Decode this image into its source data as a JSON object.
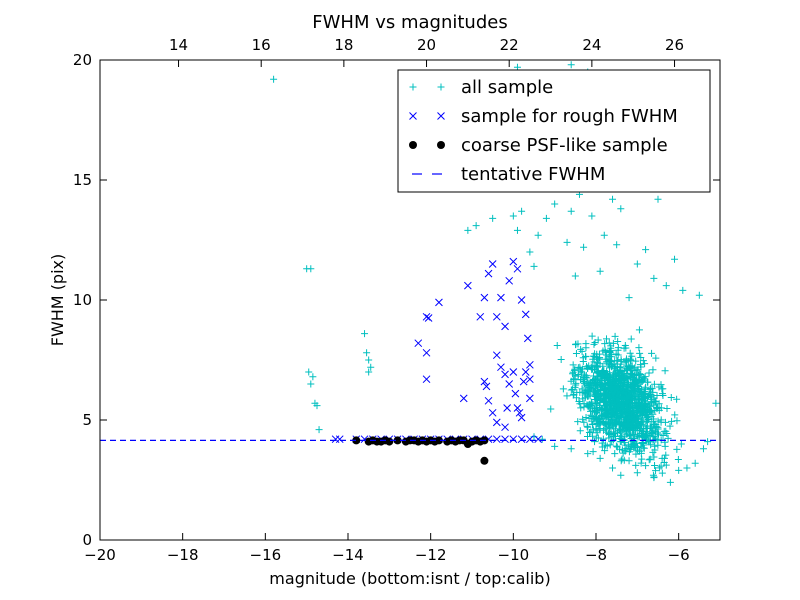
{
  "chart_data": {
    "type": "scatter",
    "title": "FWHM vs magnitudes",
    "xlabel": "magnitude (bottom:isnt / top:calib)",
    "ylabel": "FWHM (pix)",
    "xlim": [
      -20,
      -5
    ],
    "ylim": [
      0,
      20
    ],
    "top_xlim": [
      12.1,
      27.1
    ],
    "x_ticks": [
      -20,
      -18,
      -16,
      -14,
      -12,
      -10,
      -8,
      -6
    ],
    "x_tick_labels": [
      "−20",
      "−18",
      "−16",
      "−14",
      "−12",
      "−10",
      "−8",
      "−6"
    ],
    "y_ticks": [
      0,
      5,
      10,
      15,
      20
    ],
    "y_tick_labels": [
      "0",
      "5",
      "10",
      "15",
      "20"
    ],
    "top_ticks": [
      14,
      16,
      18,
      20,
      22,
      24,
      26
    ],
    "top_tick_labels": [
      "14",
      "16",
      "18",
      "20",
      "22",
      "24",
      "26"
    ],
    "legend_position": "top-right",
    "colors": {
      "all": "#00bfbf",
      "rough": "#0000ff",
      "psf": "#000000",
      "line": "#0000ff"
    },
    "tentative_fwhm": 4.15,
    "series": [
      {
        "name": "all sample",
        "marker": "plus",
        "color": "#00bfbf",
        "points": [
          [
            -15.8,
            19.2
          ],
          [
            -9.9,
            19.7
          ],
          [
            -8.6,
            19.8
          ],
          [
            -8.2,
            19.5
          ],
          [
            -8.4,
            14.4
          ],
          [
            -15.0,
            11.3
          ],
          [
            -14.9,
            11.3
          ],
          [
            -14.95,
            7.0
          ],
          [
            -14.9,
            6.5
          ],
          [
            -14.85,
            6.8
          ],
          [
            -14.8,
            5.7
          ],
          [
            -14.75,
            5.6
          ],
          [
            -14.7,
            4.6
          ],
          [
            -13.6,
            8.6
          ],
          [
            -13.55,
            7.8
          ],
          [
            -13.5,
            7.5
          ],
          [
            -13.45,
            7.2
          ],
          [
            -13.5,
            7.0
          ],
          [
            -11.1,
            12.9
          ],
          [
            -10.9,
            13.1
          ],
          [
            -10.5,
            13.4
          ],
          [
            -10.0,
            13.5
          ],
          [
            -9.9,
            12.9
          ],
          [
            -9.8,
            13.7
          ],
          [
            -9.6,
            12.0
          ],
          [
            -9.5,
            11.4
          ],
          [
            -9.4,
            12.7
          ],
          [
            -9.2,
            13.4
          ],
          [
            -9.0,
            14.0
          ],
          [
            -8.8,
            15.2
          ],
          [
            -8.7,
            12.4
          ],
          [
            -8.6,
            13.7
          ],
          [
            -8.5,
            11.0
          ],
          [
            -8.3,
            12.2
          ],
          [
            -8.1,
            13.5
          ],
          [
            -7.9,
            11.2
          ],
          [
            -7.8,
            12.7
          ],
          [
            -7.6,
            14.2
          ],
          [
            -7.5,
            12.3
          ],
          [
            -7.4,
            13.8
          ],
          [
            -7.2,
            10.1
          ],
          [
            -7.0,
            11.5
          ],
          [
            -6.8,
            12.1
          ],
          [
            -6.6,
            10.9
          ],
          [
            -6.5,
            14.2
          ],
          [
            -6.3,
            10.6
          ],
          [
            -6.1,
            11.7
          ],
          [
            -5.9,
            10.4
          ],
          [
            -5.5,
            10.2
          ],
          [
            -5.1,
            5.7
          ],
          [
            -5.3,
            4.1
          ],
          [
            -5.4,
            3.8
          ],
          [
            -5.6,
            3.2
          ],
          [
            -5.8,
            3.0
          ],
          [
            -6.0,
            2.9
          ],
          [
            -6.2,
            2.4
          ],
          [
            -6.4,
            3.4
          ],
          [
            -6.6,
            2.6
          ],
          [
            -6.8,
            3.1
          ],
          [
            -7.0,
            2.8
          ],
          [
            -7.2,
            3.3
          ],
          [
            -7.4,
            2.7
          ],
          [
            -7.6,
            3.0
          ],
          [
            -7.9,
            3.4
          ],
          [
            -8.2,
            3.6
          ],
          [
            -8.6,
            3.8
          ],
          [
            -9.0,
            3.9
          ],
          [
            -9.3,
            4.2
          ],
          [
            -9.5,
            4.3
          ]
        ]
      },
      {
        "name": "sample for rough FWHM",
        "marker": "x",
        "color": "#0000ff",
        "points": [
          [
            -14.3,
            4.2
          ],
          [
            -14.2,
            4.2
          ],
          [
            -13.8,
            4.2
          ],
          [
            -13.6,
            4.2
          ],
          [
            -13.4,
            4.2
          ],
          [
            -13.2,
            4.2
          ],
          [
            -13.0,
            4.2
          ],
          [
            -12.8,
            4.2
          ],
          [
            -12.6,
            4.2
          ],
          [
            -12.4,
            4.2
          ],
          [
            -12.2,
            4.2
          ],
          [
            -12.0,
            4.2
          ],
          [
            -11.8,
            4.2
          ],
          [
            -11.6,
            4.2
          ],
          [
            -11.4,
            4.2
          ],
          [
            -11.2,
            4.2
          ],
          [
            -11.0,
            4.2
          ],
          [
            -10.8,
            4.2
          ],
          [
            -10.6,
            4.2
          ],
          [
            -10.4,
            4.2
          ],
          [
            -10.2,
            4.2
          ],
          [
            -10.0,
            4.2
          ],
          [
            -9.8,
            4.2
          ],
          [
            -9.6,
            4.2
          ],
          [
            -9.4,
            4.2
          ],
          [
            -12.1,
            9.3
          ],
          [
            -12.05,
            9.25
          ],
          [
            -11.8,
            9.9
          ],
          [
            -12.3,
            8.2
          ],
          [
            -12.1,
            7.8
          ],
          [
            -12.1,
            6.7
          ],
          [
            -11.1,
            10.6
          ],
          [
            -11.2,
            5.9
          ],
          [
            -10.8,
            9.3
          ],
          [
            -10.7,
            10.1
          ],
          [
            -10.6,
            11.1
          ],
          [
            -10.5,
            11.5
          ],
          [
            -10.4,
            9.3
          ],
          [
            -10.3,
            10.1
          ],
          [
            -10.2,
            8.9
          ],
          [
            -10.1,
            10.8
          ],
          [
            -10.0,
            11.6
          ],
          [
            -9.9,
            11.3
          ],
          [
            -9.8,
            10.0
          ],
          [
            -9.7,
            9.4
          ],
          [
            -9.65,
            8.4
          ],
          [
            -10.7,
            6.6
          ],
          [
            -10.65,
            6.4
          ],
          [
            -10.6,
            5.8
          ],
          [
            -10.4,
            7.7
          ],
          [
            -10.3,
            7.2
          ],
          [
            -10.2,
            6.9
          ],
          [
            -10.1,
            6.5
          ],
          [
            -10.0,
            7.0
          ],
          [
            -9.95,
            6.1
          ],
          [
            -9.9,
            5.5
          ],
          [
            -9.85,
            5.3
          ],
          [
            -9.8,
            5.1
          ],
          [
            -9.75,
            6.6
          ],
          [
            -9.7,
            7.0
          ],
          [
            -10.5,
            5.3
          ],
          [
            -10.4,
            4.9
          ],
          [
            -10.2,
            4.7
          ],
          [
            -10.15,
            5.5
          ],
          [
            -9.6,
            5.9
          ],
          [
            -9.6,
            6.7
          ],
          [
            -9.6,
            7.3
          ]
        ]
      },
      {
        "name": "coarse PSF-like sample",
        "marker": "circle",
        "color": "#000000",
        "points": [
          [
            -13.8,
            4.15
          ],
          [
            -13.5,
            4.1
          ],
          [
            -13.4,
            4.15
          ],
          [
            -13.3,
            4.1
          ],
          [
            -13.2,
            4.1
          ],
          [
            -13.1,
            4.15
          ],
          [
            -13.0,
            4.1
          ],
          [
            -12.8,
            4.15
          ],
          [
            -12.6,
            4.1
          ],
          [
            -12.5,
            4.15
          ],
          [
            -12.4,
            4.15
          ],
          [
            -12.3,
            4.1
          ],
          [
            -12.2,
            4.15
          ],
          [
            -12.1,
            4.1
          ],
          [
            -12.0,
            4.15
          ],
          [
            -11.9,
            4.1
          ],
          [
            -11.8,
            4.15
          ],
          [
            -11.6,
            4.1
          ],
          [
            -11.5,
            4.15
          ],
          [
            -11.4,
            4.1
          ],
          [
            -11.3,
            4.15
          ],
          [
            -11.2,
            4.15
          ],
          [
            -11.0,
            4.1
          ],
          [
            -10.9,
            4.15
          ],
          [
            -10.8,
            4.1
          ],
          [
            -10.7,
            4.15
          ],
          [
            -11.1,
            4.0
          ],
          [
            -10.7,
            3.3
          ]
        ]
      }
    ],
    "line_series": {
      "name": "tentative FWHM",
      "style": "dashed",
      "color": "#0000ff",
      "y": 4.15
    },
    "dense_cloud": {
      "center_x": -7.4,
      "center_y": 5.8,
      "spread_x": 0.9,
      "spread_y": 1.6,
      "count": 1400
    }
  }
}
